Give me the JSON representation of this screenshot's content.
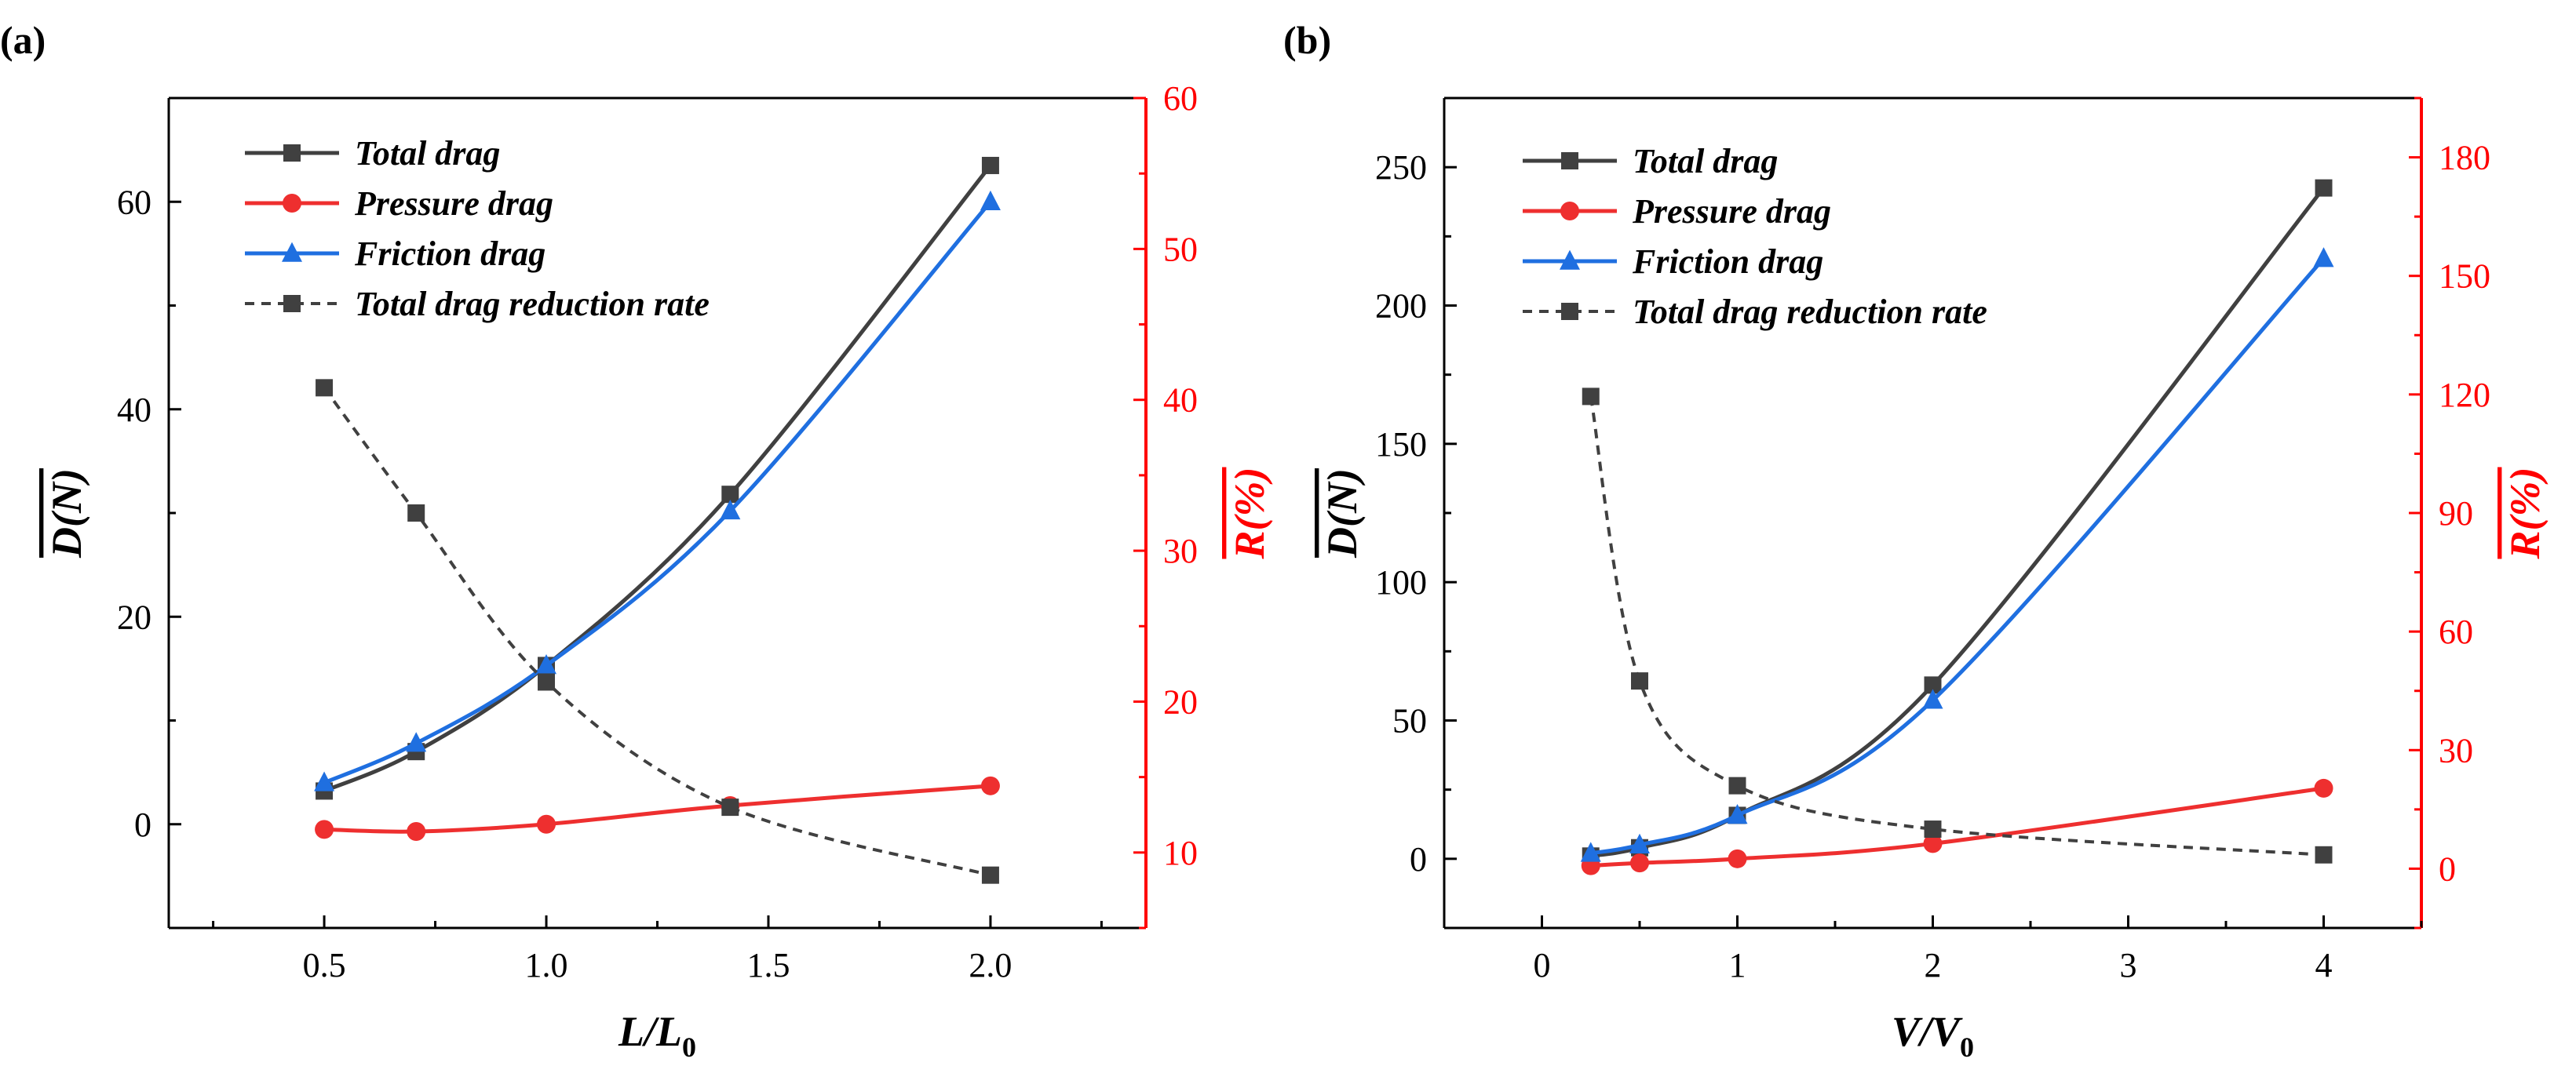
{
  "colors": {
    "total": "#404040",
    "pressure": "#ee2f2f",
    "friction": "#1f6fe0",
    "rate": "#404040",
    "right_axis": "#ff0000",
    "axis": "#000000"
  },
  "chart_data": [
    {
      "panel": "(a)",
      "type": "line",
      "xlabel_base": "L/L",
      "xlabel_sub": "0",
      "ylabel": "D(N)",
      "ylabel_right": "R(%)",
      "xlim": [
        0.15,
        2.35
      ],
      "ylim": [
        -10,
        70
      ],
      "ylim_right": [
        5,
        60
      ],
      "xticks": [
        0.5,
        1.0,
        1.5,
        2.0
      ],
      "xtick_labels": [
        "0.5",
        "1.0",
        "1.5",
        "2.0"
      ],
      "yticks": [
        0,
        20,
        40,
        60
      ],
      "ytick_labels": [
        "0",
        "20",
        "40",
        "60"
      ],
      "yticks_right": [
        10,
        20,
        30,
        40,
        50,
        60
      ],
      "ytick_labels_right": [
        "10",
        "20",
        "30",
        "40",
        "50",
        "60"
      ],
      "x": [
        0.5,
        0.707,
        1.0,
        1.414,
        2.0
      ],
      "series": [
        {
          "name": "Total drag",
          "key": "total",
          "axis": "left",
          "marker": "square",
          "dashed": false,
          "values": [
            3.2,
            7.0,
            15.3,
            31.8,
            63.5
          ]
        },
        {
          "name": "Pressure drag",
          "key": "pressure",
          "axis": "left",
          "marker": "circle",
          "dashed": false,
          "values": [
            -0.5,
            -0.7,
            0.0,
            1.8,
            3.7
          ]
        },
        {
          "name": "Friction drag",
          "key": "friction",
          "axis": "left",
          "marker": "triangle",
          "dashed": false,
          "values": [
            4.0,
            7.8,
            15.3,
            30.2,
            60.0
          ]
        },
        {
          "name": "Total drag reduction rate",
          "key": "rate",
          "axis": "right",
          "marker": "square",
          "dashed": true,
          "values": [
            40.8,
            32.5,
            21.3,
            13.0,
            8.5
          ]
        }
      ]
    },
    {
      "panel": "(b)",
      "type": "line",
      "xlabel_base": "V/V",
      "xlabel_sub": "0",
      "ylabel": "D(N)",
      "ylabel_right": "R(%)",
      "xlim": [
        -0.5,
        4.5
      ],
      "ylim": [
        -25,
        275
      ],
      "ylim_right": [
        -15,
        195
      ],
      "xticks": [
        0,
        1,
        2,
        3,
        4
      ],
      "xtick_labels": [
        "0",
        "1",
        "2",
        "3",
        "4"
      ],
      "yticks": [
        0,
        50,
        100,
        150,
        200,
        250
      ],
      "ytick_labels": [
        "0",
        "50",
        "100",
        "150",
        "200",
        "250"
      ],
      "yticks_right": [
        0,
        30,
        60,
        90,
        120,
        150,
        180
      ],
      "ytick_labels_right": [
        "0",
        "30",
        "60",
        "90",
        "120",
        "150",
        "180"
      ],
      "x": [
        0.25,
        0.5,
        1.0,
        2.0,
        4.0
      ],
      "series": [
        {
          "name": "Total drag",
          "key": "total",
          "axis": "left",
          "marker": "square",
          "dashed": false,
          "values": [
            1.0,
            4.0,
            15.7,
            62.8,
            242.5
          ]
        },
        {
          "name": "Pressure drag",
          "key": "pressure",
          "axis": "left",
          "marker": "circle",
          "dashed": false,
          "values": [
            -2.5,
            -1.5,
            0.0,
            5.5,
            25.5
          ]
        },
        {
          "name": "Friction drag",
          "key": "friction",
          "axis": "left",
          "marker": "triangle",
          "dashed": false,
          "values": [
            2.0,
            5.0,
            15.7,
            57.3,
            217.0
          ]
        },
        {
          "name": "Total drag reduction rate",
          "key": "rate",
          "axis": "right",
          "marker": "square",
          "dashed": true,
          "values": [
            119.5,
            47.5,
            21.0,
            10.0,
            3.5
          ]
        }
      ]
    }
  ]
}
